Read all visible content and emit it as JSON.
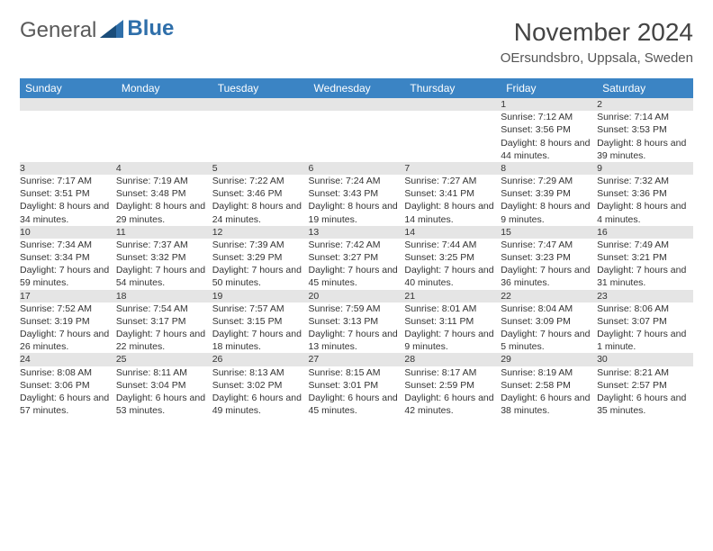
{
  "logo": {
    "text1": "General",
    "text2": "Blue",
    "color1": "#5a5a5a",
    "color2": "#2f6faa"
  },
  "month": "November 2024",
  "location": "OErsundsbro, Uppsala, Sweden",
  "header_bg": "#3b84c4",
  "header_text_color": "#ffffff",
  "day_header_bg": "#e5e5e5",
  "accent_border": "#2f6faa",
  "weekdays": [
    "Sunday",
    "Monday",
    "Tuesday",
    "Wednesday",
    "Thursday",
    "Friday",
    "Saturday"
  ],
  "weeks": [
    [
      {
        "num": "",
        "sunrise": "",
        "sunset": "",
        "daylight": ""
      },
      {
        "num": "",
        "sunrise": "",
        "sunset": "",
        "daylight": ""
      },
      {
        "num": "",
        "sunrise": "",
        "sunset": "",
        "daylight": ""
      },
      {
        "num": "",
        "sunrise": "",
        "sunset": "",
        "daylight": ""
      },
      {
        "num": "",
        "sunrise": "",
        "sunset": "",
        "daylight": ""
      },
      {
        "num": "1",
        "sunrise": "Sunrise: 7:12 AM",
        "sunset": "Sunset: 3:56 PM",
        "daylight": "Daylight: 8 hours and 44 minutes."
      },
      {
        "num": "2",
        "sunrise": "Sunrise: 7:14 AM",
        "sunset": "Sunset: 3:53 PM",
        "daylight": "Daylight: 8 hours and 39 minutes."
      }
    ],
    [
      {
        "num": "3",
        "sunrise": "Sunrise: 7:17 AM",
        "sunset": "Sunset: 3:51 PM",
        "daylight": "Daylight: 8 hours and 34 minutes."
      },
      {
        "num": "4",
        "sunrise": "Sunrise: 7:19 AM",
        "sunset": "Sunset: 3:48 PM",
        "daylight": "Daylight: 8 hours and 29 minutes."
      },
      {
        "num": "5",
        "sunrise": "Sunrise: 7:22 AM",
        "sunset": "Sunset: 3:46 PM",
        "daylight": "Daylight: 8 hours and 24 minutes."
      },
      {
        "num": "6",
        "sunrise": "Sunrise: 7:24 AM",
        "sunset": "Sunset: 3:43 PM",
        "daylight": "Daylight: 8 hours and 19 minutes."
      },
      {
        "num": "7",
        "sunrise": "Sunrise: 7:27 AM",
        "sunset": "Sunset: 3:41 PM",
        "daylight": "Daylight: 8 hours and 14 minutes."
      },
      {
        "num": "8",
        "sunrise": "Sunrise: 7:29 AM",
        "sunset": "Sunset: 3:39 PM",
        "daylight": "Daylight: 8 hours and 9 minutes."
      },
      {
        "num": "9",
        "sunrise": "Sunrise: 7:32 AM",
        "sunset": "Sunset: 3:36 PM",
        "daylight": "Daylight: 8 hours and 4 minutes."
      }
    ],
    [
      {
        "num": "10",
        "sunrise": "Sunrise: 7:34 AM",
        "sunset": "Sunset: 3:34 PM",
        "daylight": "Daylight: 7 hours and 59 minutes."
      },
      {
        "num": "11",
        "sunrise": "Sunrise: 7:37 AM",
        "sunset": "Sunset: 3:32 PM",
        "daylight": "Daylight: 7 hours and 54 minutes."
      },
      {
        "num": "12",
        "sunrise": "Sunrise: 7:39 AM",
        "sunset": "Sunset: 3:29 PM",
        "daylight": "Daylight: 7 hours and 50 minutes."
      },
      {
        "num": "13",
        "sunrise": "Sunrise: 7:42 AM",
        "sunset": "Sunset: 3:27 PM",
        "daylight": "Daylight: 7 hours and 45 minutes."
      },
      {
        "num": "14",
        "sunrise": "Sunrise: 7:44 AM",
        "sunset": "Sunset: 3:25 PM",
        "daylight": "Daylight: 7 hours and 40 minutes."
      },
      {
        "num": "15",
        "sunrise": "Sunrise: 7:47 AM",
        "sunset": "Sunset: 3:23 PM",
        "daylight": "Daylight: 7 hours and 36 minutes."
      },
      {
        "num": "16",
        "sunrise": "Sunrise: 7:49 AM",
        "sunset": "Sunset: 3:21 PM",
        "daylight": "Daylight: 7 hours and 31 minutes."
      }
    ],
    [
      {
        "num": "17",
        "sunrise": "Sunrise: 7:52 AM",
        "sunset": "Sunset: 3:19 PM",
        "daylight": "Daylight: 7 hours and 26 minutes."
      },
      {
        "num": "18",
        "sunrise": "Sunrise: 7:54 AM",
        "sunset": "Sunset: 3:17 PM",
        "daylight": "Daylight: 7 hours and 22 minutes."
      },
      {
        "num": "19",
        "sunrise": "Sunrise: 7:57 AM",
        "sunset": "Sunset: 3:15 PM",
        "daylight": "Daylight: 7 hours and 18 minutes."
      },
      {
        "num": "20",
        "sunrise": "Sunrise: 7:59 AM",
        "sunset": "Sunset: 3:13 PM",
        "daylight": "Daylight: 7 hours and 13 minutes."
      },
      {
        "num": "21",
        "sunrise": "Sunrise: 8:01 AM",
        "sunset": "Sunset: 3:11 PM",
        "daylight": "Daylight: 7 hours and 9 minutes."
      },
      {
        "num": "22",
        "sunrise": "Sunrise: 8:04 AM",
        "sunset": "Sunset: 3:09 PM",
        "daylight": "Daylight: 7 hours and 5 minutes."
      },
      {
        "num": "23",
        "sunrise": "Sunrise: 8:06 AM",
        "sunset": "Sunset: 3:07 PM",
        "daylight": "Daylight: 7 hours and 1 minute."
      }
    ],
    [
      {
        "num": "24",
        "sunrise": "Sunrise: 8:08 AM",
        "sunset": "Sunset: 3:06 PM",
        "daylight": "Daylight: 6 hours and 57 minutes."
      },
      {
        "num": "25",
        "sunrise": "Sunrise: 8:11 AM",
        "sunset": "Sunset: 3:04 PM",
        "daylight": "Daylight: 6 hours and 53 minutes."
      },
      {
        "num": "26",
        "sunrise": "Sunrise: 8:13 AM",
        "sunset": "Sunset: 3:02 PM",
        "daylight": "Daylight: 6 hours and 49 minutes."
      },
      {
        "num": "27",
        "sunrise": "Sunrise: 8:15 AM",
        "sunset": "Sunset: 3:01 PM",
        "daylight": "Daylight: 6 hours and 45 minutes."
      },
      {
        "num": "28",
        "sunrise": "Sunrise: 8:17 AM",
        "sunset": "Sunset: 2:59 PM",
        "daylight": "Daylight: 6 hours and 42 minutes."
      },
      {
        "num": "29",
        "sunrise": "Sunrise: 8:19 AM",
        "sunset": "Sunset: 2:58 PM",
        "daylight": "Daylight: 6 hours and 38 minutes."
      },
      {
        "num": "30",
        "sunrise": "Sunrise: 8:21 AM",
        "sunset": "Sunset: 2:57 PM",
        "daylight": "Daylight: 6 hours and 35 minutes."
      }
    ]
  ]
}
